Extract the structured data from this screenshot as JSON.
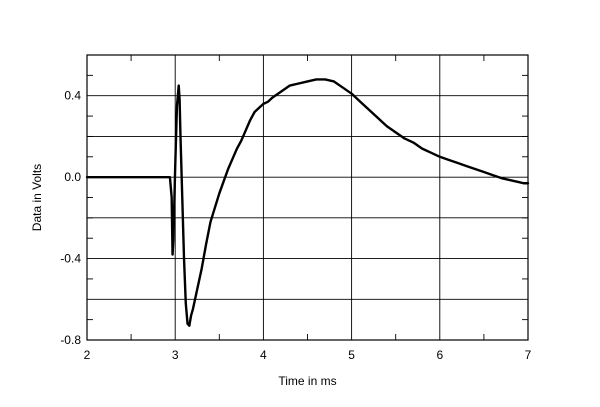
{
  "chart_data": {
    "type": "line",
    "title": "",
    "xlabel": "Time in ms",
    "ylabel": "Data in Volts",
    "xlim": [
      2,
      7
    ],
    "ylim": [
      -0.8,
      0.6
    ],
    "grid": true,
    "x_major_ticks": [
      2,
      3,
      4,
      5,
      6,
      7
    ],
    "x_tick_labels": [
      "2",
      "3",
      "4",
      "5",
      "6",
      "7"
    ],
    "y_major_ticks": [
      -0.8,
      -0.4,
      0.0,
      0.4
    ],
    "y_tick_labels": [
      "-0.8",
      "-0.4",
      "0.0",
      "0.4"
    ],
    "y_gridlines": [
      -0.8,
      -0.6,
      -0.4,
      -0.2,
      0.0,
      0.2,
      0.4,
      0.6
    ],
    "series": [
      {
        "x": [
          2.0,
          2.5,
          2.94,
          2.96,
          2.97,
          2.98,
          3.0,
          3.02,
          3.04,
          3.05,
          3.06,
          3.08,
          3.1,
          3.12,
          3.14,
          3.16,
          3.18,
          3.2,
          3.25,
          3.3,
          3.35,
          3.4,
          3.45,
          3.5,
          3.55,
          3.6,
          3.65,
          3.7,
          3.75,
          3.8,
          3.85,
          3.9,
          3.95,
          4.0,
          4.05,
          4.1,
          4.2,
          4.3,
          4.4,
          4.5,
          4.6,
          4.7,
          4.8,
          4.9,
          5.0,
          5.1,
          5.2,
          5.3,
          5.4,
          5.5,
          5.6,
          5.7,
          5.8,
          5.9,
          6.0,
          6.1,
          6.2,
          6.3,
          6.4,
          6.5,
          6.6,
          6.7,
          6.8,
          6.9,
          6.95,
          7.0
        ],
        "y": [
          0.0,
          0.0,
          0.0,
          -0.1,
          -0.38,
          -0.3,
          0.05,
          0.35,
          0.45,
          0.38,
          0.2,
          -0.1,
          -0.4,
          -0.62,
          -0.72,
          -0.73,
          -0.68,
          -0.65,
          -0.55,
          -0.45,
          -0.33,
          -0.22,
          -0.15,
          -0.08,
          -0.02,
          0.04,
          0.09,
          0.14,
          0.18,
          0.23,
          0.28,
          0.32,
          0.34,
          0.36,
          0.37,
          0.39,
          0.42,
          0.45,
          0.46,
          0.47,
          0.48,
          0.48,
          0.47,
          0.44,
          0.41,
          0.37,
          0.33,
          0.29,
          0.25,
          0.22,
          0.19,
          0.17,
          0.14,
          0.12,
          0.1,
          0.085,
          0.07,
          0.055,
          0.04,
          0.025,
          0.01,
          -0.005,
          -0.015,
          -0.025,
          -0.03,
          -0.03
        ]
      }
    ]
  }
}
